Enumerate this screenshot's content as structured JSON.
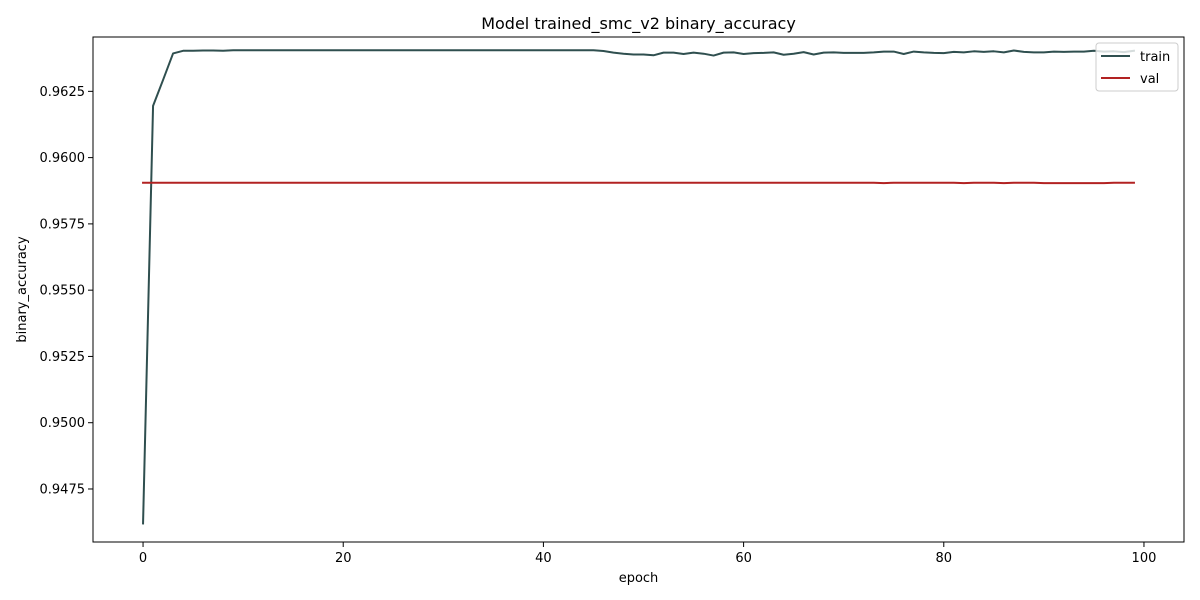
{
  "chart_data": {
    "type": "line",
    "title": "Model trained_smc_v2 binary_accuracy",
    "xlabel": "epoch",
    "ylabel": "binary_accuracy",
    "xlim": [
      -5,
      104
    ],
    "ylim": [
      0.9455,
      0.96455
    ],
    "xticks": [
      0,
      20,
      40,
      60,
      80,
      100
    ],
    "xtick_labels": [
      "0",
      "20",
      "40",
      "60",
      "80",
      "100"
    ],
    "yticks": [
      0.9475,
      0.95,
      0.9525,
      0.955,
      0.9575,
      0.96,
      0.9625
    ],
    "ytick_labels": [
      "0.9475",
      "0.9500",
      "0.9525",
      "0.9550",
      "0.9575",
      "0.9600",
      "0.9625"
    ],
    "grid": false,
    "legend_position": "upper right",
    "series": [
      {
        "name": "train",
        "color": "#2f4f4f",
        "x": [
          0,
          1,
          2,
          3,
          4,
          5,
          6,
          7,
          8,
          9,
          10,
          11,
          12,
          13,
          14,
          15,
          16,
          17,
          18,
          19,
          20,
          21,
          22,
          23,
          24,
          25,
          26,
          27,
          28,
          29,
          30,
          31,
          32,
          33,
          34,
          35,
          36,
          37,
          38,
          39,
          40,
          41,
          42,
          43,
          44,
          45,
          46,
          47,
          48,
          49,
          50,
          51,
          52,
          53,
          54,
          55,
          56,
          57,
          58,
          59,
          60,
          61,
          62,
          63,
          64,
          65,
          66,
          67,
          68,
          69,
          70,
          71,
          72,
          73,
          74,
          75,
          76,
          77,
          78,
          79,
          80,
          81,
          82,
          83,
          84,
          85,
          86,
          87,
          88,
          89,
          90,
          91,
          92,
          93,
          94,
          95,
          96,
          97,
          98,
          99
        ],
        "y": [
          0.9462,
          0.96195,
          0.96293,
          0.96393,
          0.96403,
          0.96403,
          0.96404,
          0.96404,
          0.96403,
          0.96405,
          0.96405,
          0.96405,
          0.96405,
          0.96405,
          0.96405,
          0.96405,
          0.96405,
          0.96405,
          0.96405,
          0.96405,
          0.96405,
          0.96405,
          0.96405,
          0.96405,
          0.96405,
          0.96405,
          0.96405,
          0.96405,
          0.96405,
          0.96405,
          0.96405,
          0.96405,
          0.96405,
          0.96405,
          0.96405,
          0.96405,
          0.96405,
          0.96405,
          0.96405,
          0.96405,
          0.96405,
          0.96405,
          0.96405,
          0.96405,
          0.96405,
          0.96405,
          0.96402,
          0.96396,
          0.96392,
          0.96389,
          0.96389,
          0.96386,
          0.96396,
          0.96396,
          0.96391,
          0.96396,
          0.96392,
          0.96385,
          0.96396,
          0.96397,
          0.96391,
          0.96394,
          0.96395,
          0.96397,
          0.96388,
          0.96392,
          0.96398,
          0.96389,
          0.96396,
          0.96397,
          0.96395,
          0.96395,
          0.96395,
          0.96397,
          0.964,
          0.964,
          0.96391,
          0.964,
          0.96397,
          0.96395,
          0.96394,
          0.96399,
          0.96397,
          0.96401,
          0.96399,
          0.96401,
          0.96397,
          0.96404,
          0.96399,
          0.96397,
          0.96397,
          0.964,
          0.96399,
          0.964,
          0.964,
          0.96403,
          0.964,
          0.96401,
          0.96398,
          0.96403
        ]
      },
      {
        "name": "val",
        "color": "#b22222",
        "x": [
          0,
          1,
          2,
          3,
          4,
          5,
          6,
          7,
          8,
          9,
          10,
          11,
          12,
          13,
          14,
          15,
          16,
          17,
          18,
          19,
          20,
          21,
          22,
          23,
          24,
          25,
          26,
          27,
          28,
          29,
          30,
          31,
          32,
          33,
          34,
          35,
          36,
          37,
          38,
          39,
          40,
          41,
          42,
          43,
          44,
          45,
          46,
          47,
          48,
          49,
          50,
          51,
          52,
          53,
          54,
          55,
          56,
          57,
          58,
          59,
          60,
          61,
          62,
          63,
          64,
          65,
          66,
          67,
          68,
          69,
          70,
          71,
          72,
          73,
          74,
          75,
          76,
          77,
          78,
          79,
          80,
          81,
          82,
          83,
          84,
          85,
          86,
          87,
          88,
          89,
          90,
          91,
          92,
          93,
          94,
          95,
          96,
          97,
          98,
          99
        ],
        "y": [
          0.95905,
          0.95905,
          0.95905,
          0.95905,
          0.95905,
          0.95905,
          0.95905,
          0.95905,
          0.95905,
          0.95905,
          0.95905,
          0.95905,
          0.95905,
          0.95905,
          0.95905,
          0.95905,
          0.95905,
          0.95905,
          0.95905,
          0.95905,
          0.95905,
          0.95905,
          0.95905,
          0.95905,
          0.95905,
          0.95905,
          0.95905,
          0.95905,
          0.95905,
          0.95905,
          0.95905,
          0.95905,
          0.95905,
          0.95905,
          0.95905,
          0.95905,
          0.95905,
          0.95905,
          0.95905,
          0.95905,
          0.95905,
          0.95905,
          0.95905,
          0.95905,
          0.95905,
          0.95905,
          0.95905,
          0.95905,
          0.95905,
          0.95905,
          0.95905,
          0.95905,
          0.95905,
          0.95905,
          0.95905,
          0.95905,
          0.95905,
          0.95905,
          0.95905,
          0.95905,
          0.95905,
          0.95905,
          0.95905,
          0.95905,
          0.95905,
          0.95905,
          0.95905,
          0.95905,
          0.95905,
          0.95905,
          0.95905,
          0.95905,
          0.95905,
          0.95905,
          0.95904,
          0.95905,
          0.95905,
          0.95905,
          0.95905,
          0.95905,
          0.95905,
          0.95905,
          0.95904,
          0.95905,
          0.95905,
          0.95905,
          0.95904,
          0.95905,
          0.95905,
          0.95905,
          0.95904,
          0.95904,
          0.95904,
          0.95904,
          0.95904,
          0.95904,
          0.95904,
          0.95905,
          0.95905,
          0.95905
        ]
      }
    ]
  }
}
